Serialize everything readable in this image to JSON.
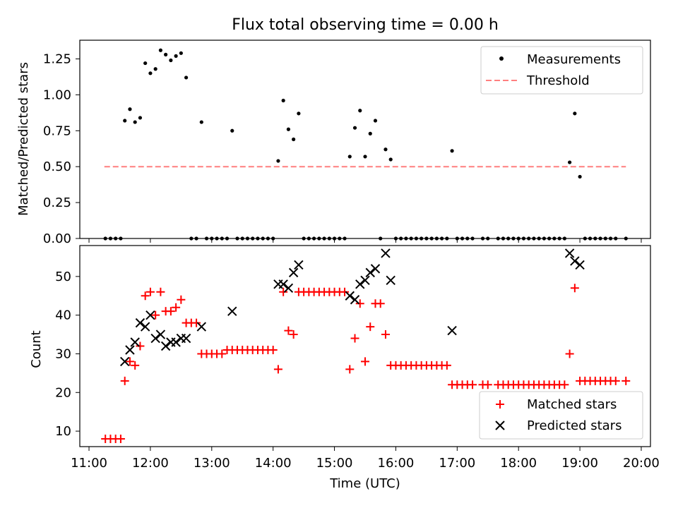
{
  "title": "Flux total observing time = 0.00 h",
  "colors": {
    "threshold": "#ff7f7f",
    "matched": "#ff0000",
    "predicted": "#000000",
    "measure": "#000000"
  },
  "chart_data": [
    {
      "type": "scatter",
      "ylabel": "Matched/Predicted stars",
      "xlim": [
        "11:00",
        "20:00"
      ],
      "ylim": [
        0,
        1.38
      ],
      "yticks": [
        "0.00",
        "0.25",
        "0.50",
        "0.75",
        "1.00",
        "1.25"
      ],
      "ytick_values": [
        0,
        0.25,
        0.5,
        0.75,
        1.0,
        1.25
      ],
      "legend": {
        "position": "top-right",
        "entries": [
          "Measurements",
          "Threshold"
        ]
      },
      "series": [
        {
          "name": "Measurements",
          "points": [
            [
              "11:16",
              0
            ],
            [
              "11:21",
              0
            ],
            [
              "11:26",
              0
            ],
            [
              "11:31",
              0
            ],
            [
              "11:35",
              0.82
            ],
            [
              "11:40",
              0.9
            ],
            [
              "11:45",
              0.81
            ],
            [
              "11:50",
              0.84
            ],
            [
              "11:55",
              1.22
            ],
            [
              "12:00",
              1.15
            ],
            [
              "12:05",
              1.18
            ],
            [
              "12:10",
              1.31
            ],
            [
              "12:15",
              1.28
            ],
            [
              "12:20",
              1.24
            ],
            [
              "12:25",
              1.27
            ],
            [
              "12:30",
              1.29
            ],
            [
              "12:35",
              1.12
            ],
            [
              "12:40",
              0
            ],
            [
              "12:45",
              0
            ],
            [
              "12:50",
              0.81
            ],
            [
              "12:55",
              0
            ],
            [
              "13:00",
              0
            ],
            [
              "13:05",
              0
            ],
            [
              "13:10",
              0
            ],
            [
              "13:15",
              0
            ],
            [
              "13:20",
              0.75
            ],
            [
              "13:25",
              0
            ],
            [
              "13:30",
              0
            ],
            [
              "13:35",
              0
            ],
            [
              "13:40",
              0
            ],
            [
              "13:45",
              0
            ],
            [
              "13:50",
              0
            ],
            [
              "13:55",
              0
            ],
            [
              "14:00",
              0
            ],
            [
              "14:05",
              0.54
            ],
            [
              "14:10",
              0.96
            ],
            [
              "14:15",
              0.76
            ],
            [
              "14:20",
              0.69
            ],
            [
              "14:25",
              0.87
            ],
            [
              "14:30",
              0
            ],
            [
              "14:35",
              0
            ],
            [
              "14:40",
              0
            ],
            [
              "14:45",
              0
            ],
            [
              "14:50",
              0
            ],
            [
              "14:55",
              0
            ],
            [
              "15:00",
              0
            ],
            [
              "15:05",
              0
            ],
            [
              "15:10",
              0
            ],
            [
              "15:15",
              0.57
            ],
            [
              "15:20",
              0.77
            ],
            [
              "15:25",
              0.89
            ],
            [
              "15:30",
              0.57
            ],
            [
              "15:35",
              0.73
            ],
            [
              "15:40",
              0.82
            ],
            [
              "15:45",
              0
            ],
            [
              "15:50",
              0.62
            ],
            [
              "15:55",
              0.55
            ],
            [
              "16:00",
              0
            ],
            [
              "16:05",
              0
            ],
            [
              "16:10",
              0
            ],
            [
              "16:15",
              0
            ],
            [
              "16:20",
              0
            ],
            [
              "16:25",
              0
            ],
            [
              "16:30",
              0
            ],
            [
              "16:35",
              0
            ],
            [
              "16:40",
              0
            ],
            [
              "16:45",
              0
            ],
            [
              "16:50",
              0
            ],
            [
              "16:55",
              0.61
            ],
            [
              "17:00",
              0
            ],
            [
              "17:05",
              0
            ],
            [
              "17:10",
              0
            ],
            [
              "17:15",
              0
            ],
            [
              "17:25",
              0
            ],
            [
              "17:30",
              0
            ],
            [
              "17:40",
              0
            ],
            [
              "17:45",
              0
            ],
            [
              "17:50",
              0
            ],
            [
              "17:55",
              0
            ],
            [
              "18:00",
              0
            ],
            [
              "18:05",
              0
            ],
            [
              "18:10",
              0
            ],
            [
              "18:15",
              0
            ],
            [
              "18:20",
              0
            ],
            [
              "18:25",
              0
            ],
            [
              "18:30",
              0
            ],
            [
              "18:35",
              0
            ],
            [
              "18:40",
              0
            ],
            [
              "18:45",
              0
            ],
            [
              "18:50",
              0.53
            ],
            [
              "18:55",
              0.87
            ],
            [
              "19:00",
              0.43
            ],
            [
              "19:05",
              0
            ],
            [
              "19:10",
              0
            ],
            [
              "19:15",
              0
            ],
            [
              "19:20",
              0
            ],
            [
              "19:25",
              0
            ],
            [
              "19:30",
              0
            ],
            [
              "19:35",
              0
            ],
            [
              "19:45",
              0
            ]
          ]
        },
        {
          "name": "Threshold",
          "style": "dashed",
          "x": [
            "11:15",
            "19:45"
          ],
          "y": [
            0.5,
            0.5
          ]
        }
      ]
    },
    {
      "type": "scatter",
      "ylabel": "Count",
      "xlabel": "Time (UTC)",
      "xlim": [
        "11:00",
        "20:00"
      ],
      "ylim": [
        6,
        58
      ],
      "xticks": [
        "11:00",
        "12:00",
        "13:00",
        "14:00",
        "15:00",
        "16:00",
        "17:00",
        "18:00",
        "19:00",
        "20:00"
      ],
      "yticks": [
        "10",
        "20",
        "30",
        "40",
        "50"
      ],
      "ytick_values": [
        10,
        20,
        30,
        40,
        50
      ],
      "legend": {
        "position": "bottom-right",
        "entries": [
          "Matched stars",
          "Predicted stars"
        ]
      },
      "series": [
        {
          "name": "Matched stars",
          "marker": "+",
          "points": [
            [
              "11:16",
              8
            ],
            [
              "11:21",
              8
            ],
            [
              "11:26",
              8
            ],
            [
              "11:31",
              8
            ],
            [
              "11:35",
              23
            ],
            [
              "11:40",
              28
            ],
            [
              "11:45",
              27
            ],
            [
              "11:50",
              32
            ],
            [
              "11:55",
              45
            ],
            [
              "12:00",
              46
            ],
            [
              "12:05",
              40
            ],
            [
              "12:10",
              46
            ],
            [
              "12:15",
              41
            ],
            [
              "12:20",
              41
            ],
            [
              "12:25",
              42
            ],
            [
              "12:30",
              44
            ],
            [
              "12:35",
              38
            ],
            [
              "12:40",
              38
            ],
            [
              "12:45",
              38
            ],
            [
              "12:50",
              30
            ],
            [
              "12:55",
              30
            ],
            [
              "13:00",
              30
            ],
            [
              "13:05",
              30
            ],
            [
              "13:10",
              30
            ],
            [
              "13:15",
              31
            ],
            [
              "13:20",
              31
            ],
            [
              "13:25",
              31
            ],
            [
              "13:30",
              31
            ],
            [
              "13:35",
              31
            ],
            [
              "13:40",
              31
            ],
            [
              "13:45",
              31
            ],
            [
              "13:50",
              31
            ],
            [
              "13:55",
              31
            ],
            [
              "14:00",
              31
            ],
            [
              "14:05",
              26
            ],
            [
              "14:10",
              46
            ],
            [
              "14:15",
              36
            ],
            [
              "14:20",
              35
            ],
            [
              "14:25",
              46
            ],
            [
              "14:30",
              46
            ],
            [
              "14:35",
              46
            ],
            [
              "14:40",
              46
            ],
            [
              "14:45",
              46
            ],
            [
              "14:50",
              46
            ],
            [
              "14:55",
              46
            ],
            [
              "15:00",
              46
            ],
            [
              "15:05",
              46
            ],
            [
              "15:10",
              46
            ],
            [
              "15:15",
              26
            ],
            [
              "15:20",
              34
            ],
            [
              "15:25",
              43
            ],
            [
              "15:30",
              28
            ],
            [
              "15:35",
              37
            ],
            [
              "15:40",
              43
            ],
            [
              "15:45",
              43
            ],
            [
              "15:50",
              35
            ],
            [
              "15:55",
              27
            ],
            [
              "16:00",
              27
            ],
            [
              "16:05",
              27
            ],
            [
              "16:10",
              27
            ],
            [
              "16:15",
              27
            ],
            [
              "16:20",
              27
            ],
            [
              "16:25",
              27
            ],
            [
              "16:30",
              27
            ],
            [
              "16:35",
              27
            ],
            [
              "16:40",
              27
            ],
            [
              "16:45",
              27
            ],
            [
              "16:50",
              27
            ],
            [
              "16:55",
              22
            ],
            [
              "17:00",
              22
            ],
            [
              "17:05",
              22
            ],
            [
              "17:10",
              22
            ],
            [
              "17:15",
              22
            ],
            [
              "17:25",
              22
            ],
            [
              "17:30",
              22
            ],
            [
              "17:40",
              22
            ],
            [
              "17:45",
              22
            ],
            [
              "17:50",
              22
            ],
            [
              "17:55",
              22
            ],
            [
              "18:00",
              22
            ],
            [
              "18:05",
              22
            ],
            [
              "18:10",
              22
            ],
            [
              "18:15",
              22
            ],
            [
              "18:20",
              22
            ],
            [
              "18:25",
              22
            ],
            [
              "18:30",
              22
            ],
            [
              "18:35",
              22
            ],
            [
              "18:40",
              22
            ],
            [
              "18:45",
              22
            ],
            [
              "18:50",
              30
            ],
            [
              "18:55",
              47
            ],
            [
              "19:00",
              23
            ],
            [
              "19:05",
              23
            ],
            [
              "19:10",
              23
            ],
            [
              "19:15",
              23
            ],
            [
              "19:20",
              23
            ],
            [
              "19:25",
              23
            ],
            [
              "19:30",
              23
            ],
            [
              "19:35",
              23
            ],
            [
              "19:45",
              23
            ]
          ]
        },
        {
          "name": "Predicted stars",
          "marker": "x",
          "points": [
            [
              "11:35",
              28
            ],
            [
              "11:40",
              31
            ],
            [
              "11:45",
              33
            ],
            [
              "11:50",
              38
            ],
            [
              "11:55",
              37
            ],
            [
              "12:00",
              40
            ],
            [
              "12:05",
              34
            ],
            [
              "12:10",
              35
            ],
            [
              "12:15",
              32
            ],
            [
              "12:20",
              33
            ],
            [
              "12:25",
              33
            ],
            [
              "12:30",
              34
            ],
            [
              "12:35",
              34
            ],
            [
              "12:50",
              37
            ],
            [
              "13:20",
              41
            ],
            [
              "14:05",
              48
            ],
            [
              "14:10",
              48
            ],
            [
              "14:15",
              47
            ],
            [
              "14:20",
              51
            ],
            [
              "14:25",
              53
            ],
            [
              "15:15",
              45
            ],
            [
              "15:20",
              44
            ],
            [
              "15:25",
              48
            ],
            [
              "15:30",
              49
            ],
            [
              "15:35",
              51
            ],
            [
              "15:40",
              52
            ],
            [
              "15:50",
              56
            ],
            [
              "15:55",
              49
            ],
            [
              "16:55",
              36
            ],
            [
              "18:50",
              56
            ],
            [
              "18:55",
              54
            ],
            [
              "19:00",
              53
            ]
          ]
        }
      ]
    }
  ]
}
